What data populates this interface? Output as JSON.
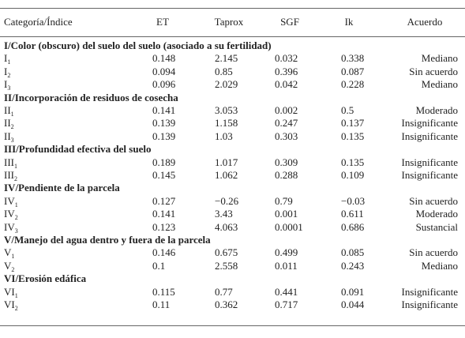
{
  "header": [
    "Categoría/Índice",
    "ET",
    "Taprox",
    "SGF",
    "Ik",
    "Acuerdo"
  ],
  "sections": [
    {
      "title": "I/Color (obscuro) del suelo del suelo (asociado a su fertilidad)",
      "rows": [
        {
          "index": "I",
          "sub": "1",
          "values": [
            "0.148",
            "2.145",
            "0.032",
            "0.338"
          ],
          "agreement": "Mediano"
        },
        {
          "index": "I",
          "sub": "2",
          "values": [
            "0.094",
            "0.85",
            "0.396",
            "0.087"
          ],
          "agreement": "Sin acuerdo"
        },
        {
          "index": "I",
          "sub": "3",
          "values": [
            "0.096",
            "2.029",
            "0.042",
            "0.228"
          ],
          "agreement": "Mediano"
        }
      ]
    },
    {
      "title": "II/Incorporación de residuos de cosecha",
      "rows": [
        {
          "index": "II",
          "sub": "1",
          "values": [
            "0.141",
            "3.053",
            "0.002",
            "0.5"
          ],
          "agreement": "Moderado"
        },
        {
          "index": "II",
          "sub": "2",
          "values": [
            "0.139",
            "1.158",
            "0.247",
            "0.137"
          ],
          "agreement": "Insignificante"
        },
        {
          "index": "II",
          "sub": "3",
          "values": [
            "0.139",
            "1.03",
            "0.303",
            "0.135"
          ],
          "agreement": "Insignificante"
        }
      ]
    },
    {
      "title": "III/Profundidad efectiva del suelo",
      "rows": [
        {
          "index": "III",
          "sub": "1",
          "values": [
            "0.189",
            "1.017",
            "0.309",
            "0.135"
          ],
          "agreement": "Insignificante"
        },
        {
          "index": "III",
          "sub": "2",
          "values": [
            "0.145",
            "1.062",
            "0.288",
            "0.109"
          ],
          "agreement": "Insignificante"
        }
      ]
    },
    {
      "title": "IV/Pendiente de la parcela",
      "rows": [
        {
          "index": "IV",
          "sub": "1",
          "values": [
            "0.127",
            "−0.26",
            "0.79",
            "−0.03"
          ],
          "agreement": "Sin acuerdo"
        },
        {
          "index": "IV",
          "sub": "2",
          "values": [
            "0.141",
            "3.43",
            "0.001",
            "0.611"
          ],
          "agreement": "Moderado"
        },
        {
          "index": "IV",
          "sub": "3",
          "values": [
            "0.123",
            "4.063",
            "0.0001",
            "0.686"
          ],
          "agreement": "Sustancial"
        }
      ]
    },
    {
      "title": "V/Manejo del agua dentro y fuera de la parcela",
      "rows": [
        {
          "index": "V",
          "sub": "1",
          "values": [
            "0.146",
            "0.675",
            "0.499",
            "0.085"
          ],
          "agreement": "Sin acuerdo"
        },
        {
          "index": "V",
          "sub": "2",
          "values": [
            "0.1",
            "2.558",
            "0.011",
            "0.243"
          ],
          "agreement": "Mediano"
        }
      ]
    },
    {
      "title": "VI/Erosión edáfica",
      "rows": [
        {
          "index": "VI",
          "sub": "1",
          "values": [
            "0.115",
            "0.77",
            "0.441",
            "0.091"
          ],
          "agreement": "Insignificante"
        },
        {
          "index": "VI",
          "sub": "2",
          "values": [
            "0.11",
            "0.362",
            "0.717",
            "0.044"
          ],
          "agreement": "Insignificante"
        }
      ]
    }
  ]
}
